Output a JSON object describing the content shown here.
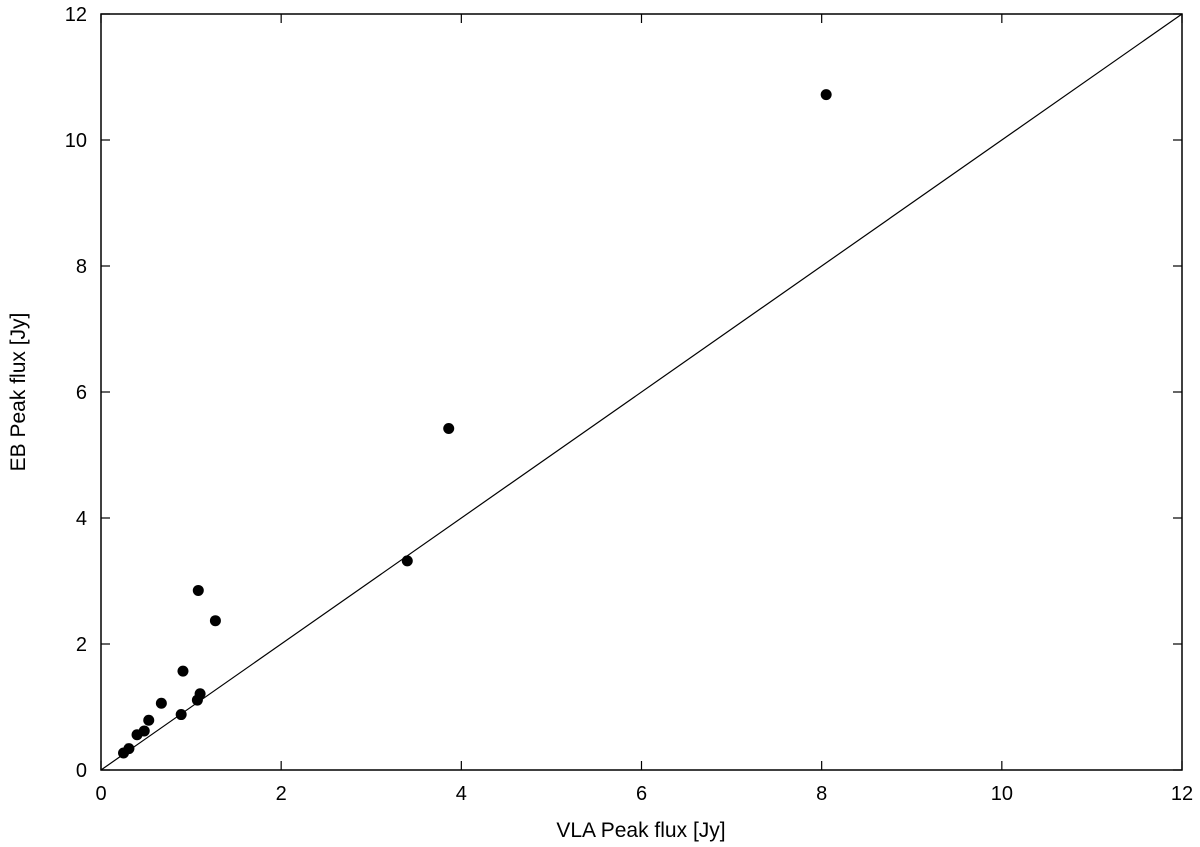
{
  "chart_data": {
    "type": "scatter",
    "title": "",
    "xlabel": "VLA Peak flux [Jy]",
    "ylabel": "EB Peak flux [Jy]",
    "xlim": [
      0,
      12
    ],
    "ylim": [
      0,
      12
    ],
    "xticks": [
      0,
      2,
      4,
      6,
      8,
      10,
      12
    ],
    "yticks": [
      0,
      2,
      4,
      6,
      8,
      10,
      12
    ],
    "grid": false,
    "legend": "none",
    "marker_color": "#000000",
    "reference_line": {
      "type": "y=x",
      "from": [
        0,
        0
      ],
      "to": [
        12,
        12
      ]
    },
    "series": [
      {
        "points": [
          {
            "x": 0.25,
            "y": 0.27
          },
          {
            "x": 0.31,
            "y": 0.34
          },
          {
            "x": 0.4,
            "y": 0.56
          },
          {
            "x": 0.48,
            "y": 0.62
          },
          {
            "x": 0.53,
            "y": 0.79
          },
          {
            "x": 0.67,
            "y": 1.06
          },
          {
            "x": 0.89,
            "y": 0.88
          },
          {
            "x": 0.91,
            "y": 1.57
          },
          {
            "x": 1.07,
            "y": 1.11
          },
          {
            "x": 1.1,
            "y": 1.21
          },
          {
            "x": 1.08,
            "y": 2.85
          },
          {
            "x": 1.27,
            "y": 2.37
          },
          {
            "x": 3.4,
            "y": 3.32
          },
          {
            "x": 3.86,
            "y": 5.42
          },
          {
            "x": 8.05,
            "y": 10.72
          }
        ]
      }
    ]
  }
}
